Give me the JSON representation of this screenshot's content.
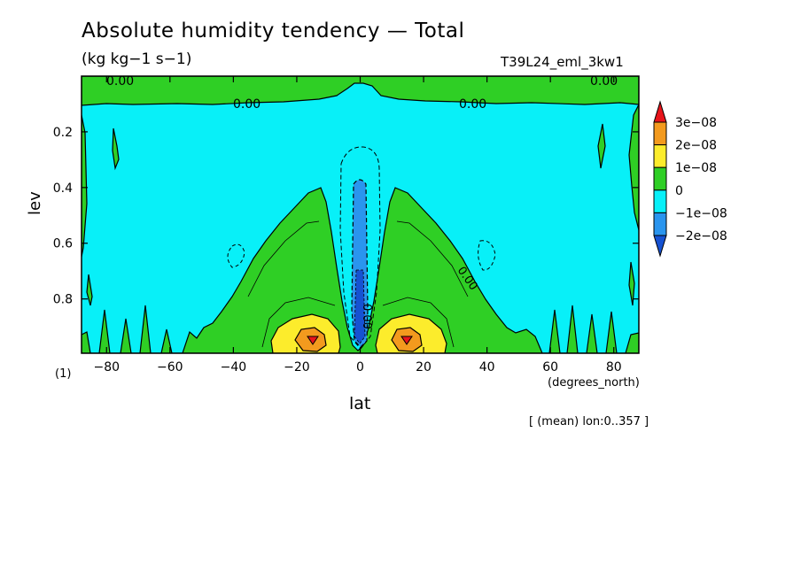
{
  "chart_data": {
    "type": "heatmap",
    "title": "Absolute humidity tendency — Total",
    "units": "(kg kg−1 s−1)",
    "run_id": "T39L24_eml_3kw1",
    "panel_label": "(1)",
    "xlabel": "lat",
    "x_units": "(degrees_north)",
    "ylabel": "lev",
    "note": "[ (mean) lon:0..357 ]",
    "xlim": [
      -87.9,
      87.9
    ],
    "ylim": [
      0.0,
      0.995
    ],
    "y_inverted": true,
    "x_ticks": [
      -80,
      -60,
      -40,
      -20,
      0,
      20,
      40,
      60,
      80
    ],
    "x_tick_labels": [
      "−80",
      "−60",
      "−40",
      "−20",
      "0",
      "20",
      "40",
      "60",
      "80"
    ],
    "y_ticks": [
      0.2,
      0.4,
      0.6,
      0.8
    ],
    "y_tick_labels": [
      "0.2",
      "0.4",
      "0.6",
      "0.8"
    ],
    "contour_labels": [
      "0.00",
      "0.00",
      "0.00",
      "0.00",
      "0.00",
      "0.00"
    ],
    "colorbar": {
      "levels": [
        "3e−08",
        "2e−08",
        "1e−08",
        "0",
        "−1e−08",
        "−2e−08"
      ],
      "colors": [
        "#e8141b",
        "#f39a1e",
        "#fcec2c",
        "#2fcf25",
        "#08f0f8",
        "#2a95ee",
        "#1652d2"
      ]
    },
    "fields": {
      "background": "#08f0f8",
      "positive_low": "#2fcf25",
      "positive_mid": "#fcec2c",
      "positive_high": "#f39a1e",
      "positive_max": "#e8141b",
      "negative_mid": "#2a95ee",
      "negative_low": "#1652d2"
    }
  }
}
